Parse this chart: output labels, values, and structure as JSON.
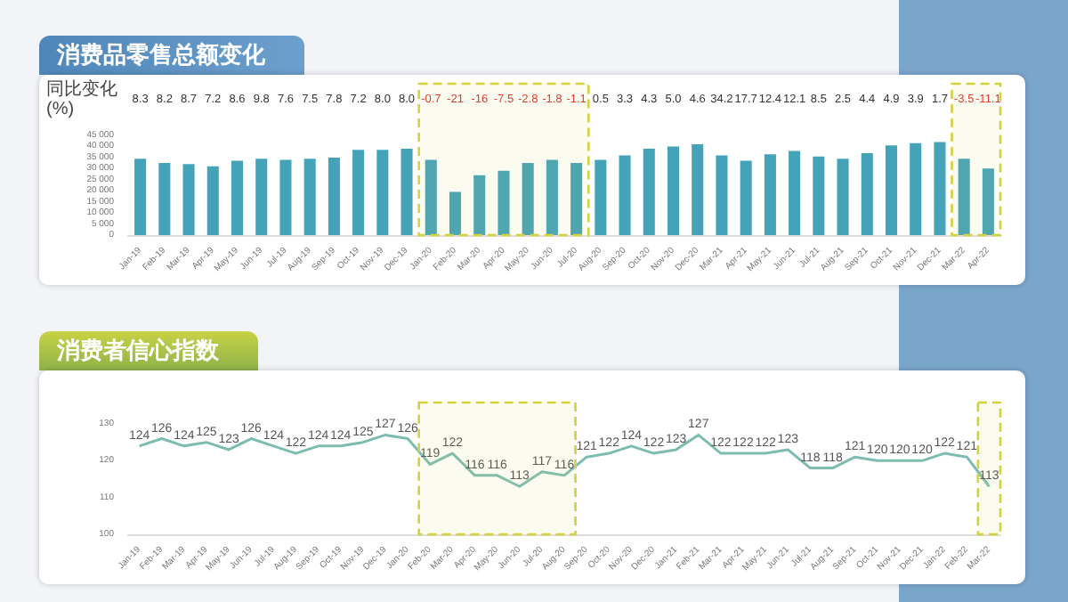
{
  "chart_data": [
    {
      "type": "bar",
      "title": "消费品零售总额变化",
      "categories": [
        "Jan-19",
        "Feb-19",
        "Mar-19",
        "Apr-19",
        "May-19",
        "Jun-19",
        "Jul-19",
        "Aug-19",
        "Sep-19",
        "Oct-19",
        "Nov-19",
        "Dec-19",
        "Jan-20",
        "Feb-20",
        "Mar-20",
        "Apr-20",
        "May-20",
        "Jun-20",
        "Jul-20",
        "Aug-20",
        "Sep-20",
        "Oct-20",
        "Nov-20",
        "Dec-20",
        "Mar-21",
        "Apr-21",
        "May-21",
        "Jun-21",
        "Jul-21",
        "Aug-21",
        "Sep-21",
        "Oct-21",
        "Nov-21",
        "Dec-21",
        "Mar-22",
        "Apr-22"
      ],
      "series": [
        {
          "color": "#45a3b9",
          "values": [
            34500,
            32500,
            32000,
            31000,
            33500,
            34500,
            34000,
            34500,
            35000,
            38500,
            38500,
            39000,
            34000,
            19500,
            27000,
            29000,
            32500,
            34000,
            32500,
            34000,
            36000,
            39000,
            40000,
            41000,
            36000,
            33500,
            36500,
            38000,
            35500,
            34500,
            37000,
            40500,
            41500,
            42000,
            34500,
            30000
          ]
        }
      ],
      "ylim": [
        0,
        45000
      ],
      "yticks": [
        {
          "value": 0,
          "label": "0"
        },
        {
          "value": 5000,
          "label": "5 000"
        },
        {
          "value": 10000,
          "label": "10 000"
        },
        {
          "value": 15000,
          "label": "15 000"
        },
        {
          "value": 20000,
          "label": "20 000"
        },
        {
          "value": 25000,
          "label": "25 000"
        },
        {
          "value": 30000,
          "label": "30 000"
        },
        {
          "value": 35000,
          "label": "35 000"
        },
        {
          "value": 40000,
          "label": "40 000"
        },
        {
          "value": 45000,
          "label": "45 000"
        }
      ],
      "annotations": [
        "同比变化 (%)",
        "8.3",
        "8.2",
        "8.7",
        "7.2",
        "8.6",
        "9.8",
        "7.6",
        "7.5",
        "7.8",
        "7.2",
        "8.0",
        "8.0",
        "-0.7",
        "-21",
        "-16",
        "-7.5",
        "-2.8",
        "-1.8",
        "-1.1",
        "0.5",
        "3.3",
        "4.3",
        "5.0",
        "4.6",
        "34.2",
        "17.7",
        "12.4",
        "12.1",
        "8.5",
        "2.5",
        "4.4",
        "4.9",
        "3.9",
        "1.7",
        "-3.5",
        "-11.1"
      ],
      "bands": [
        {
          "axis": "x",
          "from": "Jan-20",
          "to": "Jul-20",
          "color": "#d4d23a"
        },
        {
          "axis": "x",
          "from": "Mar-22",
          "to": "Apr-22",
          "color": "#d4d23a"
        }
      ],
      "grid": false
    },
    {
      "type": "line",
      "title": "消费者信心指数",
      "categories": [
        "Jan-19",
        "Feb-19",
        "Mar-19",
        "Apr-19",
        "May-19",
        "Jun-19",
        "Jul-19",
        "Aug-19",
        "Sep-19",
        "Oct-19",
        "Nov-19",
        "Dec-19",
        "Jan-20",
        "Feb-20",
        "Mar-20",
        "Apr-20",
        "May-20",
        "Jun-20",
        "Jul-20",
        "Aug-20",
        "Sep-20",
        "Oct-20",
        "Nov-20",
        "Dec-20",
        "Jan-21",
        "Feb-21",
        "Mar-21",
        "Apr-21",
        "May-21",
        "Jun-21",
        "Jul-21",
        "Aug-21",
        "Sep-21",
        "Oct-21",
        "Nov-21",
        "Dec-21",
        "Jan-22",
        "Feb-22",
        "Mar-22"
      ],
      "series": [
        {
          "color": "#7dbdb0",
          "values": [
            124,
            126,
            124,
            125,
            123,
            126,
            124,
            122,
            124,
            124,
            125,
            127,
            126,
            119,
            122,
            116,
            116,
            113,
            117,
            116,
            121,
            122,
            124,
            122,
            123,
            127,
            122,
            122,
            122,
            123,
            118,
            118,
            121,
            120,
            120,
            120,
            122,
            121,
            113
          ]
        }
      ],
      "ylim": [
        100,
        130
      ],
      "yticks": [
        100,
        110,
        120,
        130
      ],
      "bands": [
        {
          "axis": "x",
          "from": "Feb-20",
          "to": "Aug-20",
          "color": "#d4d23a"
        },
        {
          "axis": "x",
          "from": "Mar-22",
          "to": "Mar-22",
          "color": "#d4d23a"
        }
      ],
      "data_labels": true,
      "grid": false
    }
  ]
}
